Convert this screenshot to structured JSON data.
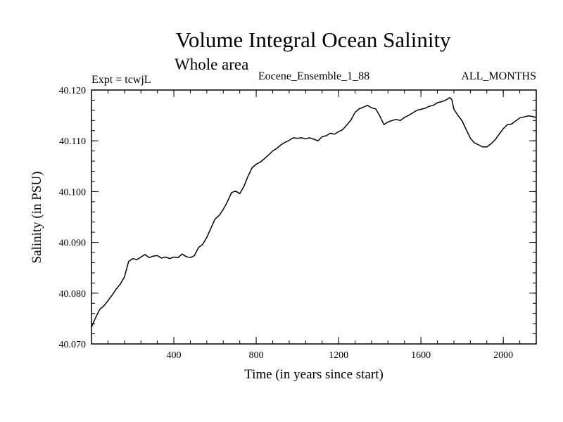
{
  "chart_data": {
    "type": "line",
    "title": "Volume Integral Ocean Salinity",
    "subtitle": "Whole area",
    "header_left": "Expt = tcwjL",
    "header_center": "Eocene_Ensemble_1_88",
    "header_right": "ALL_MONTHS",
    "xlabel": "Time (in years since start)",
    "ylabel": "Salinity (in PSU)",
    "xlim": [
      0,
      2160
    ],
    "ylim": [
      40.07,
      40.12
    ],
    "x_ticks": [
      400,
      800,
      1200,
      1600,
      2000
    ],
    "y_ticks": [
      "40.070",
      "40.080",
      "40.090",
      "40.100",
      "40.110",
      "40.120"
    ],
    "grid": false,
    "legend": "none",
    "series": [
      {
        "color": "#000000",
        "x": [
          0,
          20,
          40,
          60,
          80,
          100,
          120,
          140,
          160,
          180,
          200,
          220,
          240,
          260,
          280,
          300,
          320,
          340,
          360,
          380,
          400,
          420,
          440,
          460,
          480,
          500,
          520,
          540,
          560,
          580,
          600,
          620,
          640,
          660,
          680,
          700,
          720,
          740,
          760,
          780,
          800,
          820,
          840,
          860,
          880,
          900,
          920,
          940,
          960,
          980,
          1000,
          1020,
          1040,
          1060,
          1080,
          1100,
          1120,
          1140,
          1160,
          1180,
          1200,
          1220,
          1240,
          1260,
          1280,
          1300,
          1320,
          1340,
          1360,
          1380,
          1400,
          1420,
          1440,
          1460,
          1480,
          1500,
          1520,
          1540,
          1560,
          1580,
          1600,
          1620,
          1640,
          1660,
          1680,
          1700,
          1720,
          1740,
          1750,
          1760,
          1780,
          1800,
          1820,
          1840,
          1860,
          1880,
          1900,
          1920,
          1940,
          1960,
          1980,
          2000,
          2020,
          2040,
          2060,
          2080,
          2100,
          2120,
          2140,
          2160
        ],
        "y": [
          40.0733,
          40.0752,
          40.0768,
          40.0775,
          40.0785,
          40.0796,
          40.0808,
          40.0818,
          40.0832,
          40.0862,
          40.0868,
          40.0866,
          40.0871,
          40.0876,
          40.087,
          40.0873,
          40.0874,
          40.0869,
          40.0871,
          40.0868,
          40.0871,
          40.087,
          40.0877,
          40.0872,
          40.087,
          40.0874,
          40.089,
          40.0896,
          40.091,
          40.0928,
          40.0946,
          40.0953,
          40.0965,
          40.098,
          40.0998,
          40.1001,
          40.0996,
          40.101,
          40.103,
          40.1047,
          40.1054,
          40.1058,
          40.1065,
          40.1072,
          40.108,
          40.1085,
          40.1092,
          40.1097,
          40.1101,
          40.1106,
          40.1105,
          40.1106,
          40.1104,
          40.1106,
          40.1103,
          40.11,
          40.1108,
          40.111,
          40.1115,
          40.1113,
          40.1118,
          40.1122,
          40.1131,
          40.1141,
          40.1156,
          40.1163,
          40.1166,
          40.117,
          40.1165,
          40.1163,
          40.1149,
          40.1132,
          40.1137,
          40.114,
          40.1142,
          40.114,
          40.1146,
          40.115,
          40.1155,
          40.116,
          40.1162,
          40.1164,
          40.1168,
          40.117,
          40.1175,
          40.1177,
          40.118,
          40.1185,
          40.1181,
          40.1162,
          40.115,
          40.1139,
          40.1122,
          40.1105,
          40.1096,
          40.1092,
          40.1088,
          40.1088,
          40.1094,
          40.1102,
          40.1113,
          40.1124,
          40.1132,
          40.1133,
          40.1139,
          40.1145,
          40.1147,
          40.1149,
          40.1148,
          40.1146
        ]
      }
    ]
  }
}
